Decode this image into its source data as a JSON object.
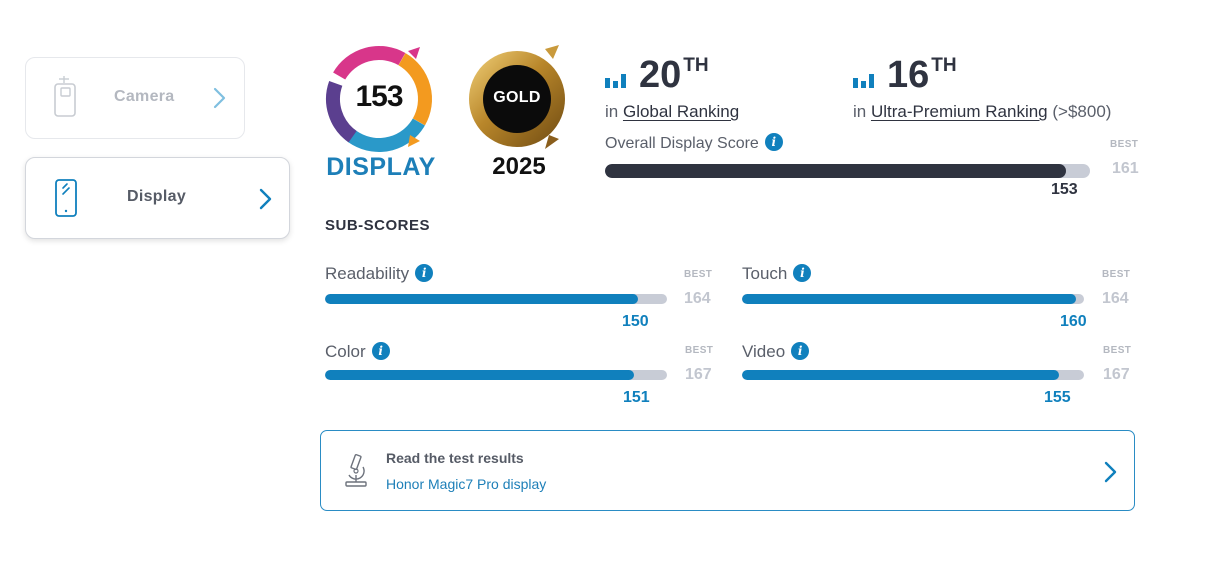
{
  "sidebar": {
    "tabs": [
      {
        "label": "Camera",
        "icon": "camera-phone-icon"
      },
      {
        "label": "Display",
        "icon": "display-phone-icon"
      }
    ]
  },
  "badge": {
    "score": "153",
    "category": "DISPLAY",
    "medal": "GOLD",
    "year": "2025"
  },
  "rankings": {
    "global": {
      "rank": "20",
      "suffix": "TH",
      "prefix": "in",
      "label": "Global Ranking",
      "extra": ""
    },
    "segment": {
      "rank": "16",
      "suffix": "TH",
      "prefix": "in",
      "label": "Ultra-Premium Ranking",
      "extra": "(>$800)"
    }
  },
  "overall": {
    "label": "Overall Display Score",
    "score": 153,
    "best": 161,
    "best_caption": "BEST"
  },
  "subscores": {
    "title": "SUB-SCORES",
    "best_caption": "BEST",
    "items": [
      {
        "label": "Readability",
        "score": 150,
        "best": 164
      },
      {
        "label": "Touch",
        "score": 160,
        "best": 164
      },
      {
        "label": "Color",
        "score": 151,
        "best": 167
      },
      {
        "label": "Video",
        "score": 155,
        "best": 167
      }
    ]
  },
  "results": {
    "title": "Read the test results",
    "link": "Honor Magic7 Pro display"
  },
  "colors": {
    "accent": "#1080bd",
    "dark": "#2f3340",
    "track": "#c8ccd6"
  }
}
